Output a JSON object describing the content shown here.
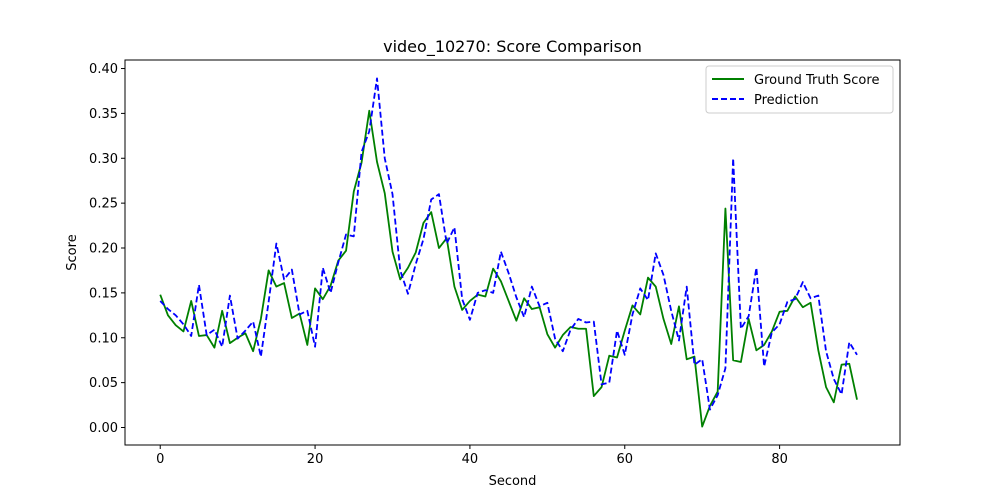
{
  "chart_data": {
    "type": "line",
    "title": "video_10270: Score Comparison",
    "xlabel": "Second",
    "ylabel": "Score",
    "xlim": [
      -4.55,
      95.55
    ],
    "ylim": [
      -0.0195,
      0.4095
    ],
    "xticks": [
      0,
      20,
      40,
      60,
      80
    ],
    "xtick_labels": [
      "0",
      "20",
      "40",
      "60",
      "80"
    ],
    "yticks": [
      0.0,
      0.05,
      0.1,
      0.15,
      0.2,
      0.25,
      0.3,
      0.35,
      0.4
    ],
    "ytick_labels": [
      "0.00",
      "0.05",
      "0.10",
      "0.15",
      "0.20",
      "0.25",
      "0.30",
      "0.35",
      "0.40"
    ],
    "grid": false,
    "legend_position": "top-right",
    "series": [
      {
        "name": "Ground Truth Score",
        "color": "#008000",
        "style": "solid",
        "values": [
          0.148,
          0.125,
          0.114,
          0.107,
          0.141,
          0.102,
          0.103,
          0.089,
          0.13,
          0.094,
          0.1,
          0.105,
          0.085,
          0.121,
          0.175,
          0.157,
          0.161,
          0.122,
          0.127,
          0.092,
          0.155,
          0.143,
          0.158,
          0.186,
          0.197,
          0.263,
          0.295,
          0.353,
          0.296,
          0.261,
          0.196,
          0.165,
          0.178,
          0.195,
          0.228,
          0.24,
          0.2,
          0.211,
          0.157,
          0.131,
          0.141,
          0.148,
          0.146,
          0.177,
          0.163,
          0.141,
          0.119,
          0.144,
          0.132,
          0.134,
          0.104,
          0.089,
          0.103,
          0.112,
          0.11,
          0.11,
          0.035,
          0.045,
          0.08,
          0.078,
          0.108,
          0.136,
          0.126,
          0.167,
          0.157,
          0.121,
          0.093,
          0.135,
          0.076,
          0.079,
          0.001,
          0.024,
          0.04,
          0.244,
          0.075,
          0.073,
          0.121,
          0.086,
          0.092,
          0.107,
          0.129,
          0.13,
          0.146,
          0.134,
          0.139,
          0.086,
          0.045,
          0.028,
          0.07,
          0.071,
          0.031
        ]
      },
      {
        "name": "Prediction",
        "color": "#0000ff",
        "style": "dashed",
        "values": [
          0.141,
          0.132,
          0.125,
          0.115,
          0.102,
          0.159,
          0.103,
          0.109,
          0.09,
          0.147,
          0.099,
          0.108,
          0.118,
          0.079,
          0.14,
          0.205,
          0.165,
          0.176,
          0.126,
          0.13,
          0.09,
          0.178,
          0.15,
          0.184,
          0.215,
          0.213,
          0.307,
          0.33,
          0.389,
          0.3,
          0.26,
          0.175,
          0.149,
          0.182,
          0.21,
          0.254,
          0.26,
          0.205,
          0.223,
          0.143,
          0.12,
          0.15,
          0.153,
          0.15,
          0.196,
          0.172,
          0.145,
          0.123,
          0.157,
          0.135,
          0.139,
          0.099,
          0.085,
          0.109,
          0.121,
          0.117,
          0.118,
          0.048,
          0.05,
          0.108,
          0.081,
          0.126,
          0.155,
          0.142,
          0.194,
          0.17,
          0.13,
          0.097,
          0.157,
          0.07,
          0.076,
          0.02,
          0.036,
          0.066,
          0.3,
          0.11,
          0.124,
          0.178,
          0.068,
          0.106,
          0.115,
          0.14,
          0.143,
          0.162,
          0.144,
          0.147,
          0.085,
          0.054,
          0.037,
          0.095,
          0.081
        ]
      }
    ]
  }
}
